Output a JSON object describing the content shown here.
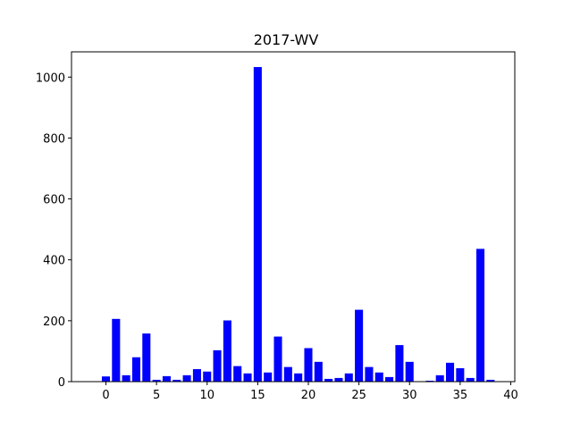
{
  "chart_data": {
    "type": "bar",
    "title": "2017-WV",
    "xlabel": "",
    "ylabel": "",
    "bar_color": "#0000ff",
    "xlim": [
      -3.4,
      40.4
    ],
    "ylim": [
      0,
      1083
    ],
    "xticks": [
      0,
      5,
      10,
      15,
      20,
      25,
      30,
      35,
      40
    ],
    "yticks": [
      0,
      200,
      400,
      600,
      800,
      1000
    ],
    "x": [
      0,
      1,
      2,
      3,
      4,
      5,
      6,
      7,
      8,
      9,
      10,
      11,
      12,
      13,
      14,
      15,
      16,
      17,
      18,
      19,
      20,
      21,
      22,
      23,
      24,
      25,
      26,
      27,
      28,
      29,
      30,
      31,
      32,
      33,
      34,
      35,
      36,
      37,
      38
    ],
    "values": [
      17,
      206,
      21,
      80,
      158,
      6,
      18,
      6,
      21,
      41,
      33,
      103,
      201,
      51,
      27,
      1033,
      30,
      148,
      48,
      27,
      110,
      65,
      9,
      12,
      27,
      236,
      48,
      30,
      15,
      120,
      65,
      0,
      3,
      21,
      62,
      44,
      12,
      436,
      6
    ],
    "grid": false
  }
}
